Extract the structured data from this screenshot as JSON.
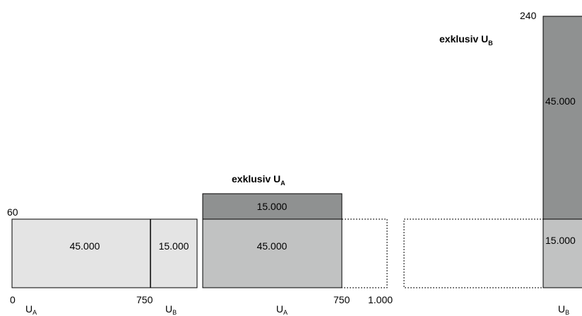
{
  "diagram": {
    "panel_1": {
      "y_top_label": "60",
      "x_start_label": "0",
      "x_mid_label": "750",
      "segment_a_value": "45.000",
      "segment_b_value": "15.000",
      "label_a_main": "U",
      "label_a_sub": "A",
      "label_b_main": "U",
      "label_b_sub": "B",
      "fill_color": "#e4e4e4"
    },
    "panel_2": {
      "title_main": "exklusiv U",
      "title_sub": "A",
      "top_value": "15.000",
      "bottom_value": "45.000",
      "x_label_750": "750",
      "x_label_1000": "1.000",
      "label_main": "U",
      "label_sub": "A",
      "top_color": "#8f9191",
      "bottom_color": "#c1c2c2"
    },
    "panel_3": {
      "y_top_label": "240",
      "title_main": "exklusiv U",
      "title_sub": "B",
      "top_value": "45.000",
      "bottom_value": "15.000",
      "label_main": "U",
      "label_sub": "B",
      "top_color": "#8f9191",
      "bottom_color": "#c1c2c2"
    }
  }
}
